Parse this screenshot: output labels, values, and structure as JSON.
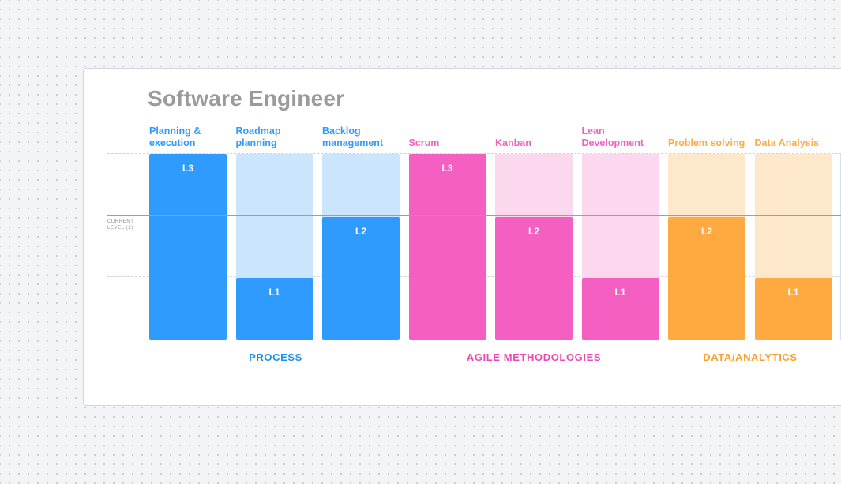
{
  "title": "Software Engineer",
  "current_level_label": "CURRENT LEVEL (2)",
  "max_level": 3,
  "colors": {
    "process": "#2f9bff",
    "process_light": "#cbe6fc",
    "agile": "#f65fc2",
    "agile_light": "#fbd8ee",
    "data": "#ffaa40",
    "data_light": "#fde8cc"
  },
  "categories": [
    {
      "label": "PROCESS",
      "color": "#1e8fef"
    },
    {
      "label": "AGILE METHODOLOGIES",
      "color": "#ec48b4"
    },
    {
      "label": "DATA/ANALYTICS",
      "color": "#f7a12f"
    }
  ],
  "skills": [
    {
      "name": "Planning & execution",
      "level": 3,
      "level_label": "L3",
      "group": "process"
    },
    {
      "name": "Roadmap planning",
      "level": 1,
      "level_label": "L1",
      "group": "process"
    },
    {
      "name": "Backlog management",
      "level": 2,
      "level_label": "L2",
      "group": "process"
    },
    {
      "name": "Scrum",
      "level": 3,
      "level_label": "L3",
      "group": "agile"
    },
    {
      "name": "Kanban",
      "level": 2,
      "level_label": "L2",
      "group": "agile"
    },
    {
      "name": "Lean Development",
      "level": 1,
      "level_label": "L1",
      "group": "agile"
    },
    {
      "name": "Problem solving",
      "level": 2,
      "level_label": "L2",
      "group": "data"
    },
    {
      "name": "Data Analysis",
      "level": 1,
      "level_label": "L1",
      "group": "data"
    }
  ]
}
